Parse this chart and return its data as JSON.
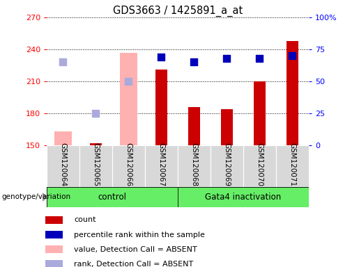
{
  "title": "GDS3663 / 1425891_a_at",
  "samples": [
    "GSM120064",
    "GSM120065",
    "GSM120066",
    "GSM120067",
    "GSM120068",
    "GSM120069",
    "GSM120070",
    "GSM120071"
  ],
  "count_values": [
    null,
    152,
    null,
    221,
    186,
    184,
    210,
    248
  ],
  "rank_values": [
    null,
    null,
    null,
    69,
    65,
    68,
    68,
    70
  ],
  "absent_value": [
    163,
    null,
    237,
    null,
    null,
    null,
    null,
    null
  ],
  "absent_rank": [
    65,
    25,
    50,
    null,
    null,
    null,
    null,
    null
  ],
  "ylim_left": [
    150,
    270
  ],
  "ylim_right": [
    0,
    100
  ],
  "yticks_left": [
    150,
    180,
    210,
    240,
    270
  ],
  "yticks_right": [
    0,
    25,
    50,
    75,
    100
  ],
  "yticklabels_right": [
    "0",
    "25",
    "50",
    "75",
    "100%"
  ],
  "bar_color_present": "#cc0000",
  "bar_color_absent": "#ffb0b0",
  "dot_color_present": "#0000bb",
  "dot_color_absent": "#aaaadd",
  "group_color": "#66ee66",
  "legend_items": [
    {
      "label": "count",
      "color": "#cc0000"
    },
    {
      "label": "percentile rank within the sample",
      "color": "#0000bb"
    },
    {
      "label": "value, Detection Call = ABSENT",
      "color": "#ffb0b0"
    },
    {
      "label": "rank, Detection Call = ABSENT",
      "color": "#aaaadd"
    }
  ],
  "absent_bar_width": 0.55,
  "present_bar_width": 0.35,
  "dot_size": 45
}
